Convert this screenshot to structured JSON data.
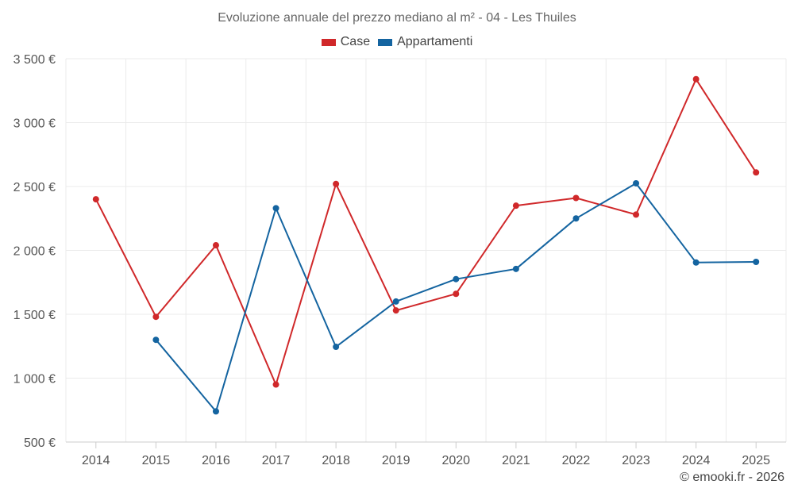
{
  "chart_data": {
    "type": "line",
    "title": "Evoluzione annuale del prezzo mediano al m² - 04 - Les Thuiles",
    "x": [
      "2014",
      "2015",
      "2016",
      "2017",
      "2018",
      "2019",
      "2020",
      "2021",
      "2022",
      "2023",
      "2024",
      "2025"
    ],
    "series": [
      {
        "name": "Case",
        "color": "#d0282a",
        "values": [
          2400,
          1480,
          2040,
          950,
          2520,
          1530,
          1660,
          2350,
          2410,
          2280,
          3340,
          2610
        ]
      },
      {
        "name": "Appartamenti",
        "color": "#1464a0",
        "values": [
          null,
          1300,
          740,
          2330,
          1245,
          1600,
          1775,
          1855,
          2250,
          2525,
          1905,
          1910
        ]
      }
    ],
    "y_ticks": [
      {
        "value": 500,
        "label": "500 €"
      },
      {
        "value": 1000,
        "label": "1 000 €"
      },
      {
        "value": 1500,
        "label": "1 500 €"
      },
      {
        "value": 2000,
        "label": "2 000 €"
      },
      {
        "value": 2500,
        "label": "2 500 €"
      },
      {
        "value": 3000,
        "label": "3 000 €"
      },
      {
        "value": 3500,
        "label": "3 500 €"
      }
    ],
    "ylim": [
      500,
      3500
    ],
    "xlabel": "",
    "ylabel": "",
    "grid": true,
    "legend_position": "top-center"
  },
  "footer": {
    "credit": "© emooki.fr - 2026"
  }
}
